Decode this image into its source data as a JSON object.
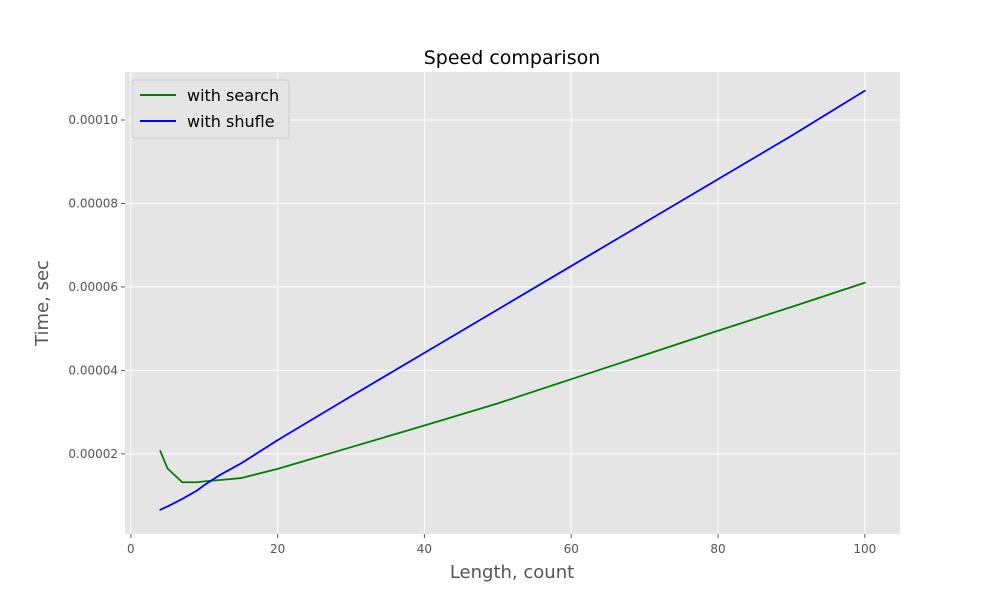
{
  "chart_data": {
    "type": "line",
    "title": "Speed comparison",
    "xlabel": "Length, count",
    "ylabel": "Time, sec",
    "xlim": [
      -0.8,
      104.8
    ],
    "ylim": [
      8e-07,
      0.0001115
    ],
    "xticks": [
      0,
      20,
      40,
      60,
      80,
      100
    ],
    "xtick_labels": [
      "0",
      "20",
      "40",
      "60",
      "80",
      "100"
    ],
    "yticks": [
      2e-05,
      4e-05,
      6e-05,
      8e-05,
      0.0001
    ],
    "ytick_labels": [
      "0.00002",
      "0.00004",
      "0.00006",
      "0.00008",
      "0.00010"
    ],
    "grid": true,
    "legend_position": "top-left",
    "series": [
      {
        "name": "with search",
        "color": "#008000",
        "x": [
          4,
          5,
          7,
          9,
          10,
          12,
          15,
          20,
          30,
          40,
          50,
          60,
          70,
          80,
          90,
          100
        ],
        "y": [
          2.07e-05,
          1.65e-05,
          1.32e-05,
          1.32e-05,
          1.34e-05,
          1.37e-05,
          1.42e-05,
          1.64e-05,
          2.16e-05,
          2.68e-05,
          3.21e-05,
          3.79e-05,
          4.37e-05,
          4.95e-05,
          5.52e-05,
          6.1e-05
        ]
      },
      {
        "name": "with shufle",
        "color": "#0000ff",
        "x": [
          4,
          5,
          7,
          9,
          10,
          12,
          15,
          20,
          30,
          40,
          50,
          60,
          70,
          80,
          90,
          100
        ],
        "y": [
          6.6e-06,
          7.4e-06,
          9.2e-06,
          1.12e-05,
          1.25e-05,
          1.48e-05,
          1.77e-05,
          2.33e-05,
          3.38e-05,
          4.42e-05,
          5.46e-05,
          6.5e-05,
          7.54e-05,
          8.58e-05,
          9.62e-05,
          0.000107
        ]
      }
    ]
  }
}
